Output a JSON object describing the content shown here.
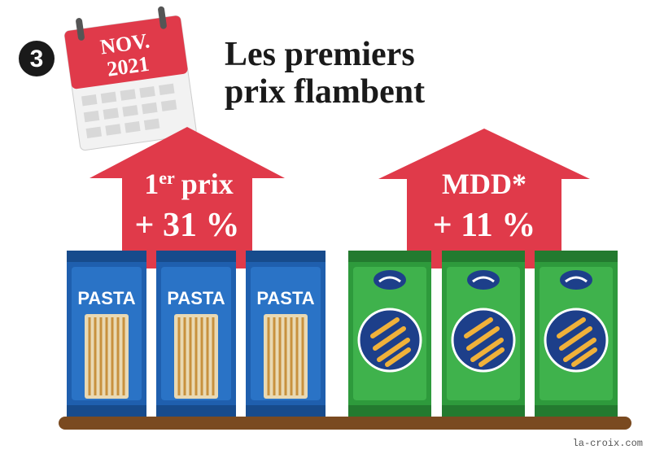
{
  "badge": "3",
  "calendar": {
    "month": "NOV.",
    "year": "2021"
  },
  "title": {
    "line1": "Les premiers",
    "line2": "prix flambent"
  },
  "arrows": [
    {
      "label": "1",
      "label_sup": "er",
      "label_rest": "prix",
      "change": "+ 31 %"
    },
    {
      "label": "MDD*",
      "change": "+ 11 %"
    }
  ],
  "packages": {
    "blue_label": [
      "PASTA",
      "PASTA",
      "PASTA"
    ]
  },
  "credit": "la-croix.com"
}
